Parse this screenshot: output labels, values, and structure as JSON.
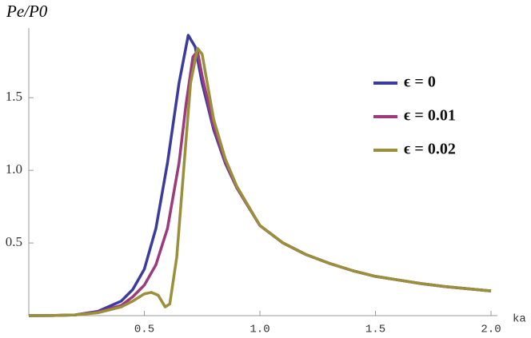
{
  "chart_data": {
    "type": "line",
    "y_label": "Pe/P0",
    "x_label": "ka",
    "xlim": [
      0,
      2.0
    ],
    "ylim": [
      0,
      1.98
    ],
    "xticks": [
      0.5,
      {
        "value": 1,
        "label": "1.0"
      },
      1.5,
      {
        "value": 2,
        "label": "2.0"
      }
    ],
    "yticks": [
      0.5,
      {
        "value": 1,
        "label": "1.0"
      },
      1.5
    ],
    "legend": "right",
    "series": [
      {
        "name": "ϵ = 0",
        "color": "#3b3b9c",
        "x": [
          0,
          0.1,
          0.2,
          0.3,
          0.4,
          0.45,
          0.5,
          0.55,
          0.6,
          0.65,
          0.69,
          0.72,
          0.75,
          0.8,
          0.85,
          0.9,
          1.0,
          1.1,
          1.2,
          1.3,
          1.4,
          1.5,
          1.6,
          1.7,
          1.8,
          1.9,
          2.0
        ],
        "values": [
          0,
          0.001,
          0.005,
          0.03,
          0.1,
          0.18,
          0.32,
          0.6,
          1.05,
          1.6,
          1.93,
          1.85,
          1.6,
          1.28,
          1.05,
          0.88,
          0.62,
          0.5,
          0.42,
          0.36,
          0.31,
          0.27,
          0.245,
          0.22,
          0.2,
          0.185,
          0.17
        ]
      },
      {
        "name": "ϵ = 0.01",
        "color": "#9b3b7b",
        "x": [
          0,
          0.1,
          0.2,
          0.3,
          0.4,
          0.45,
          0.5,
          0.55,
          0.6,
          0.65,
          0.68,
          0.71,
          0.73,
          0.75,
          0.8,
          0.85,
          0.9,
          1.0,
          1.1,
          1.2,
          1.3,
          1.4,
          1.5,
          1.6,
          1.7,
          1.8,
          1.9,
          2.0
        ],
        "values": [
          0,
          0.001,
          0.005,
          0.025,
          0.07,
          0.13,
          0.21,
          0.35,
          0.6,
          1.05,
          1.45,
          1.78,
          1.82,
          1.65,
          1.3,
          1.06,
          0.88,
          0.62,
          0.5,
          0.42,
          0.36,
          0.31,
          0.27,
          0.245,
          0.22,
          0.2,
          0.185,
          0.17
        ]
      },
      {
        "name": "ϵ = 0.02",
        "color": "#9a8f3b",
        "x": [
          0,
          0.1,
          0.2,
          0.3,
          0.4,
          0.45,
          0.5,
          0.53,
          0.56,
          0.59,
          0.61,
          0.64,
          0.67,
          0.7,
          0.73,
          0.75,
          0.8,
          0.85,
          0.9,
          1.0,
          1.1,
          1.2,
          1.3,
          1.4,
          1.5,
          1.6,
          1.7,
          1.8,
          1.9,
          2.0
        ],
        "values": [
          0,
          0.001,
          0.005,
          0.02,
          0.06,
          0.1,
          0.15,
          0.16,
          0.14,
          0.06,
          0.08,
          0.4,
          1.0,
          1.6,
          1.84,
          1.8,
          1.35,
          1.08,
          0.89,
          0.62,
          0.5,
          0.42,
          0.36,
          0.31,
          0.27,
          0.245,
          0.22,
          0.2,
          0.185,
          0.17
        ]
      }
    ]
  }
}
